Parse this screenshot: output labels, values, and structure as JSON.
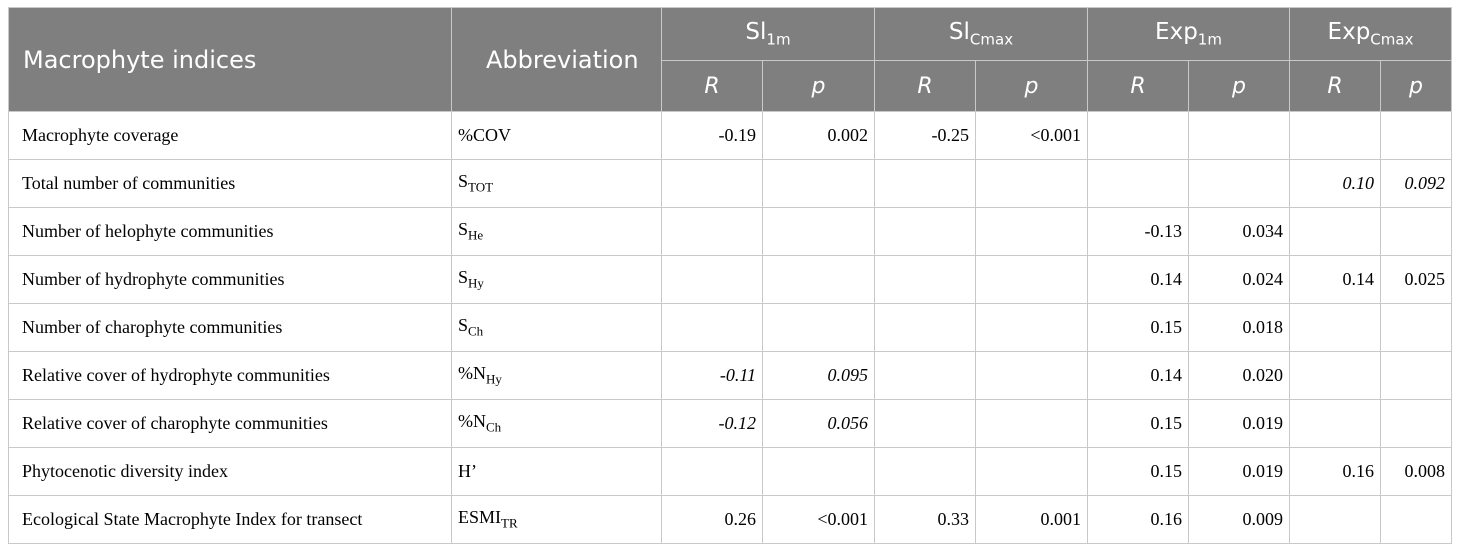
{
  "header": {
    "indices": "Macrophyte indices",
    "abbreviation": "Abbreviation",
    "groups": [
      {
        "base": "Sl",
        "sub": "1m"
      },
      {
        "base": "Sl",
        "sub": "Cmax"
      },
      {
        "base": "Exp",
        "sub": "1m"
      },
      {
        "base": "Exp",
        "sub": "Cmax"
      }
    ],
    "r": "R",
    "p": "p"
  },
  "rows": [
    {
      "name": "Macrophyte coverage",
      "abbr_base": "%COV",
      "abbr_sub": "",
      "cells": [
        {
          "v": "-0.19",
          "i": false
        },
        {
          "v": "0.002",
          "i": false
        },
        {
          "v": "-0.25",
          "i": false
        },
        {
          "v": "<0.001",
          "i": false
        },
        {
          "v": "",
          "i": false
        },
        {
          "v": "",
          "i": false
        },
        {
          "v": "",
          "i": false
        },
        {
          "v": "",
          "i": false
        }
      ]
    },
    {
      "name": "Total number of communities",
      "abbr_base": "S",
      "abbr_sub": "TOT",
      "cells": [
        {
          "v": "",
          "i": false
        },
        {
          "v": "",
          "i": false
        },
        {
          "v": "",
          "i": false
        },
        {
          "v": "",
          "i": false
        },
        {
          "v": "",
          "i": false
        },
        {
          "v": "",
          "i": false
        },
        {
          "v": "0.10",
          "i": true
        },
        {
          "v": "0.092",
          "i": true
        }
      ]
    },
    {
      "name": "Number of helophyte communities",
      "abbr_base": "S",
      "abbr_sub": "He",
      "cells": [
        {
          "v": "",
          "i": false
        },
        {
          "v": "",
          "i": false
        },
        {
          "v": "",
          "i": false
        },
        {
          "v": "",
          "i": false
        },
        {
          "v": "-0.13",
          "i": false
        },
        {
          "v": "0.034",
          "i": false
        },
        {
          "v": "",
          "i": false
        },
        {
          "v": "",
          "i": false
        }
      ]
    },
    {
      "name": "Number of hydrophyte communities",
      "abbr_base": "S",
      "abbr_sub": "Hy",
      "cells": [
        {
          "v": "",
          "i": false
        },
        {
          "v": "",
          "i": false
        },
        {
          "v": "",
          "i": false
        },
        {
          "v": "",
          "i": false
        },
        {
          "v": "0.14",
          "i": false
        },
        {
          "v": "0.024",
          "i": false
        },
        {
          "v": "0.14",
          "i": false
        },
        {
          "v": "0.025",
          "i": false
        }
      ]
    },
    {
      "name": "Number of charophyte communities",
      "abbr_base": "S",
      "abbr_sub": "Ch",
      "cells": [
        {
          "v": "",
          "i": false
        },
        {
          "v": "",
          "i": false
        },
        {
          "v": "",
          "i": false
        },
        {
          "v": "",
          "i": false
        },
        {
          "v": "0.15",
          "i": false
        },
        {
          "v": "0.018",
          "i": false
        },
        {
          "v": "",
          "i": false
        },
        {
          "v": "",
          "i": false
        }
      ]
    },
    {
      "name": "Relative cover of hydrophyte communities",
      "abbr_base": "%N",
      "abbr_sub": "Hy",
      "cells": [
        {
          "v": "-0.11",
          "i": true
        },
        {
          "v": "0.095",
          "i": true
        },
        {
          "v": "",
          "i": false
        },
        {
          "v": "",
          "i": false
        },
        {
          "v": "0.14",
          "i": false
        },
        {
          "v": "0.020",
          "i": false
        },
        {
          "v": "",
          "i": false
        },
        {
          "v": "",
          "i": false
        }
      ]
    },
    {
      "name": "Relative cover of charophyte communities",
      "abbr_base": "%N",
      "abbr_sub": "Ch",
      "cells": [
        {
          "v": "-0.12",
          "i": true
        },
        {
          "v": "0.056",
          "i": true
        },
        {
          "v": "",
          "i": false
        },
        {
          "v": "",
          "i": false
        },
        {
          "v": "0.15",
          "i": false
        },
        {
          "v": "0.019",
          "i": false
        },
        {
          "v": "",
          "i": false
        },
        {
          "v": "",
          "i": false
        }
      ]
    },
    {
      "name": "Phytocenotic diversity index",
      "abbr_base": "H’",
      "abbr_sub": "",
      "cells": [
        {
          "v": "",
          "i": false
        },
        {
          "v": "",
          "i": false
        },
        {
          "v": "",
          "i": false
        },
        {
          "v": "",
          "i": false
        },
        {
          "v": "0.15",
          "i": false
        },
        {
          "v": "0.019",
          "i": false
        },
        {
          "v": "0.16",
          "i": false
        },
        {
          "v": "0.008",
          "i": false
        }
      ]
    },
    {
      "name": "Ecological State Macrophyte Index for transect",
      "abbr_base": "ESMI",
      "abbr_sub": "TR",
      "cells": [
        {
          "v": "0.26",
          "i": false
        },
        {
          "v": "<0.001",
          "i": false
        },
        {
          "v": "0.33",
          "i": false
        },
        {
          "v": "0.001",
          "i": false
        },
        {
          "v": "0.16",
          "i": false
        },
        {
          "v": "0.009",
          "i": false
        },
        {
          "v": "",
          "i": false
        },
        {
          "v": "",
          "i": false
        }
      ]
    }
  ]
}
